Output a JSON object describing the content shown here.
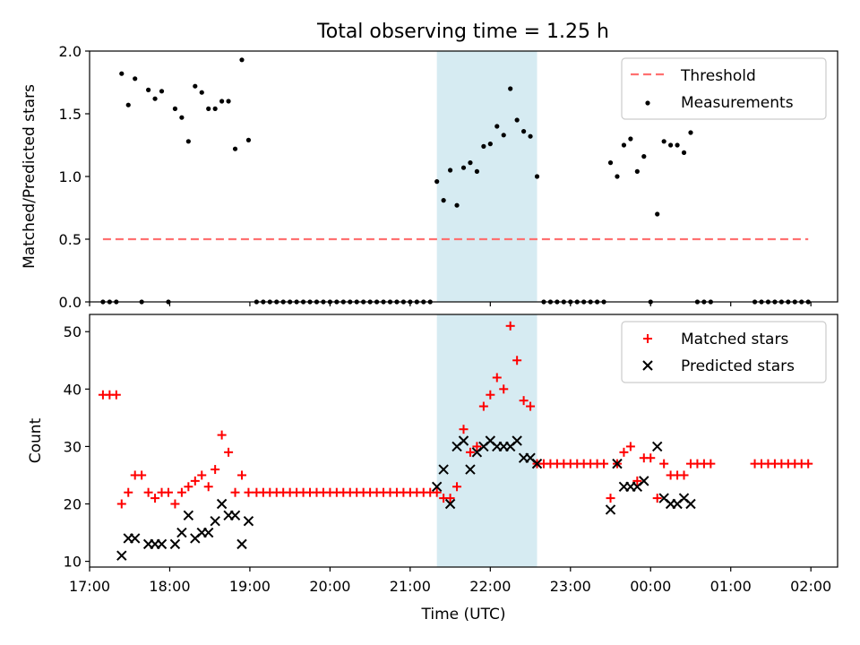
{
  "title": "Total observing time = 1.25 h",
  "chart_data": [
    {
      "type": "scatter",
      "ylabel": "Matched/Predicted stars",
      "xlabel": "",
      "xlim": [
        "17:00",
        "02:20"
      ],
      "ylim": [
        0,
        2.0
      ],
      "yticks": [
        0.0,
        0.5,
        1.0,
        1.5,
        2.0
      ],
      "ytick_labels": [
        "0.0",
        "0.5",
        "1.0",
        "1.5",
        "2.0"
      ],
      "grid": false,
      "legend": "top-right",
      "legend_entries": [
        "Threshold",
        "Measurements"
      ],
      "threshold": {
        "name": "Threshold",
        "value": 0.5,
        "x_start": "17:10",
        "x_end": "01:58",
        "color": "#ff7070"
      },
      "highlight": {
        "x_start": "21:20",
        "x_end": "22:35",
        "color": "#add8e6"
      },
      "series": [
        {
          "name": "Measurements",
          "color": "#000000",
          "points": [
            [
              "17:10",
              0
            ],
            [
              "17:15",
              0
            ],
            [
              "17:20",
              0
            ],
            [
              "17:24",
              1.82
            ],
            [
              "17:29",
              1.57
            ],
            [
              "17:34",
              1.78
            ],
            [
              "17:39",
              0
            ],
            [
              "17:44",
              1.69
            ],
            [
              "17:49",
              1.62
            ],
            [
              "17:54",
              1.68
            ],
            [
              "17:59",
              0
            ],
            [
              "18:04",
              1.54
            ],
            [
              "18:09",
              1.47
            ],
            [
              "18:14",
              1.28
            ],
            [
              "18:19",
              1.72
            ],
            [
              "18:24",
              1.67
            ],
            [
              "18:29",
              1.54
            ],
            [
              "18:34",
              1.54
            ],
            [
              "18:39",
              1.6
            ],
            [
              "18:44",
              1.6
            ],
            [
              "18:49",
              1.22
            ],
            [
              "18:54",
              1.93
            ],
            [
              "18:59",
              1.29
            ],
            [
              "19:05",
              0
            ],
            [
              "19:10",
              0
            ],
            [
              "19:15",
              0
            ],
            [
              "19:20",
              0
            ],
            [
              "19:25",
              0
            ],
            [
              "19:30",
              0
            ],
            [
              "19:35",
              0
            ],
            [
              "19:40",
              0
            ],
            [
              "19:45",
              0
            ],
            [
              "19:50",
              0
            ],
            [
              "19:55",
              0
            ],
            [
              "20:00",
              0
            ],
            [
              "20:05",
              0
            ],
            [
              "20:10",
              0
            ],
            [
              "20:15",
              0
            ],
            [
              "20:20",
              0
            ],
            [
              "20:25",
              0
            ],
            [
              "20:30",
              0
            ],
            [
              "20:35",
              0
            ],
            [
              "20:40",
              0
            ],
            [
              "20:45",
              0
            ],
            [
              "20:50",
              0
            ],
            [
              "20:55",
              0
            ],
            [
              "21:00",
              0
            ],
            [
              "21:05",
              0
            ],
            [
              "21:10",
              0
            ],
            [
              "21:15",
              0
            ],
            [
              "21:20",
              0.96
            ],
            [
              "21:25",
              0.81
            ],
            [
              "21:30",
              1.05
            ],
            [
              "21:35",
              0.77
            ],
            [
              "21:40",
              1.07
            ],
            [
              "21:45",
              1.11
            ],
            [
              "21:50",
              1.04
            ],
            [
              "21:55",
              1.24
            ],
            [
              "22:00",
              1.26
            ],
            [
              "22:05",
              1.4
            ],
            [
              "22:10",
              1.33
            ],
            [
              "22:15",
              1.7
            ],
            [
              "22:20",
              1.45
            ],
            [
              "22:25",
              1.36
            ],
            [
              "22:30",
              1.32
            ],
            [
              "22:35",
              1.0
            ],
            [
              "22:40",
              0
            ],
            [
              "22:45",
              0
            ],
            [
              "22:50",
              0
            ],
            [
              "22:55",
              0
            ],
            [
              "23:00",
              0
            ],
            [
              "23:05",
              0
            ],
            [
              "23:10",
              0
            ],
            [
              "23:15",
              0
            ],
            [
              "23:20",
              0
            ],
            [
              "23:25",
              0
            ],
            [
              "23:30",
              1.11
            ],
            [
              "23:35",
              1.0
            ],
            [
              "23:40",
              1.25
            ],
            [
              "23:45",
              1.3
            ],
            [
              "23:50",
              1.04
            ],
            [
              "23:55",
              1.16
            ],
            [
              "00:00",
              0
            ],
            [
              "00:05",
              0.7
            ],
            [
              "00:10",
              1.28
            ],
            [
              "00:15",
              1.25
            ],
            [
              "00:20",
              1.25
            ],
            [
              "00:25",
              1.19
            ],
            [
              "00:30",
              1.35
            ],
            [
              "00:35",
              0
            ],
            [
              "00:40",
              0
            ],
            [
              "00:45",
              0
            ],
            [
              "01:18",
              0
            ],
            [
              "01:23",
              0
            ],
            [
              "01:28",
              0
            ],
            [
              "01:33",
              0
            ],
            [
              "01:38",
              0
            ],
            [
              "01:43",
              0
            ],
            [
              "01:48",
              0
            ],
            [
              "01:53",
              0
            ],
            [
              "01:58",
              0
            ]
          ]
        }
      ]
    },
    {
      "type": "scatter",
      "ylabel": "Count",
      "xlabel": "Time (UTC)",
      "xlim": [
        "17:00",
        "02:20"
      ],
      "ylim": [
        9,
        53
      ],
      "yticks": [
        10,
        20,
        30,
        40,
        50
      ],
      "xticks": [
        "17:00",
        "18:00",
        "19:00",
        "20:00",
        "21:00",
        "22:00",
        "23:00",
        "00:00",
        "01:00",
        "02:00"
      ],
      "grid": false,
      "legend": "top-right",
      "legend_entries": [
        "Matched stars",
        "Predicted stars"
      ],
      "highlight": {
        "x_start": "21:20",
        "x_end": "22:35",
        "color": "#add8e6"
      },
      "series": [
        {
          "name": "Matched stars",
          "marker": "+",
          "color": "#ff0000",
          "points": [
            [
              "17:10",
              39
            ],
            [
              "17:15",
              39
            ],
            [
              "17:20",
              39
            ],
            [
              "17:24",
              20
            ],
            [
              "17:29",
              22
            ],
            [
              "17:34",
              25
            ],
            [
              "17:39",
              25
            ],
            [
              "17:44",
              22
            ],
            [
              "17:49",
              21
            ],
            [
              "17:54",
              22
            ],
            [
              "17:59",
              22
            ],
            [
              "18:04",
              20
            ],
            [
              "18:09",
              22
            ],
            [
              "18:14",
              23
            ],
            [
              "18:19",
              24
            ],
            [
              "18:24",
              25
            ],
            [
              "18:29",
              23
            ],
            [
              "18:34",
              26
            ],
            [
              "18:39",
              32
            ],
            [
              "18:44",
              29
            ],
            [
              "18:49",
              22
            ],
            [
              "18:54",
              25
            ],
            [
              "18:59",
              22
            ],
            [
              "19:05",
              22
            ],
            [
              "19:10",
              22
            ],
            [
              "19:15",
              22
            ],
            [
              "19:20",
              22
            ],
            [
              "19:25",
              22
            ],
            [
              "19:30",
              22
            ],
            [
              "19:35",
              22
            ],
            [
              "19:40",
              22
            ],
            [
              "19:45",
              22
            ],
            [
              "19:50",
              22
            ],
            [
              "19:55",
              22
            ],
            [
              "20:00",
              22
            ],
            [
              "20:05",
              22
            ],
            [
              "20:10",
              22
            ],
            [
              "20:15",
              22
            ],
            [
              "20:20",
              22
            ],
            [
              "20:25",
              22
            ],
            [
              "20:30",
              22
            ],
            [
              "20:35",
              22
            ],
            [
              "20:40",
              22
            ],
            [
              "20:45",
              22
            ],
            [
              "20:50",
              22
            ],
            [
              "20:55",
              22
            ],
            [
              "21:00",
              22
            ],
            [
              "21:05",
              22
            ],
            [
              "21:10",
              22
            ],
            [
              "21:15",
              22
            ],
            [
              "21:20",
              22
            ],
            [
              "21:25",
              21
            ],
            [
              "21:30",
              21
            ],
            [
              "21:35",
              23
            ],
            [
              "21:40",
              33
            ],
            [
              "21:45",
              29
            ],
            [
              "21:50",
              30
            ],
            [
              "21:55",
              37
            ],
            [
              "22:00",
              39
            ],
            [
              "22:05",
              42
            ],
            [
              "22:10",
              40
            ],
            [
              "22:15",
              51
            ],
            [
              "22:20",
              45
            ],
            [
              "22:25",
              38
            ],
            [
              "22:30",
              37
            ],
            [
              "22:35",
              27
            ],
            [
              "22:40",
              27
            ],
            [
              "22:45",
              27
            ],
            [
              "22:50",
              27
            ],
            [
              "22:55",
              27
            ],
            [
              "23:00",
              27
            ],
            [
              "23:05",
              27
            ],
            [
              "23:10",
              27
            ],
            [
              "23:15",
              27
            ],
            [
              "23:20",
              27
            ],
            [
              "23:25",
              27
            ],
            [
              "23:30",
              21
            ],
            [
              "23:35",
              27
            ],
            [
              "23:40",
              29
            ],
            [
              "23:45",
              30
            ],
            [
              "23:50",
              24
            ],
            [
              "23:55",
              28
            ],
            [
              "00:00",
              28
            ],
            [
              "00:05",
              21
            ],
            [
              "00:10",
              27
            ],
            [
              "00:15",
              25
            ],
            [
              "00:20",
              25
            ],
            [
              "00:25",
              25
            ],
            [
              "00:30",
              27
            ],
            [
              "00:35",
              27
            ],
            [
              "00:40",
              27
            ],
            [
              "00:45",
              27
            ],
            [
              "01:18",
              27
            ],
            [
              "01:23",
              27
            ],
            [
              "01:28",
              27
            ],
            [
              "01:33",
              27
            ],
            [
              "01:38",
              27
            ],
            [
              "01:43",
              27
            ],
            [
              "01:48",
              27
            ],
            [
              "01:53",
              27
            ],
            [
              "01:58",
              27
            ]
          ]
        },
        {
          "name": "Predicted stars",
          "marker": "x",
          "color": "#000000",
          "points": [
            [
              "17:24",
              11
            ],
            [
              "17:29",
              14
            ],
            [
              "17:34",
              14
            ],
            [
              "17:44",
              13
            ],
            [
              "17:49",
              13
            ],
            [
              "17:54",
              13
            ],
            [
              "18:04",
              13
            ],
            [
              "18:09",
              15
            ],
            [
              "18:14",
              18
            ],
            [
              "18:19",
              14
            ],
            [
              "18:24",
              15
            ],
            [
              "18:29",
              15
            ],
            [
              "18:34",
              17
            ],
            [
              "18:39",
              20
            ],
            [
              "18:44",
              18
            ],
            [
              "18:49",
              18
            ],
            [
              "18:54",
              13
            ],
            [
              "18:59",
              17
            ],
            [
              "21:20",
              23
            ],
            [
              "21:25",
              26
            ],
            [
              "21:30",
              20
            ],
            [
              "21:35",
              30
            ],
            [
              "21:40",
              31
            ],
            [
              "21:45",
              26
            ],
            [
              "21:50",
              29
            ],
            [
              "21:55",
              30
            ],
            [
              "22:00",
              31
            ],
            [
              "22:05",
              30
            ],
            [
              "22:10",
              30
            ],
            [
              "22:15",
              30
            ],
            [
              "22:20",
              31
            ],
            [
              "22:25",
              28
            ],
            [
              "22:30",
              28
            ],
            [
              "22:35",
              27
            ],
            [
              "23:30",
              19
            ],
            [
              "23:35",
              27
            ],
            [
              "23:40",
              23
            ],
            [
              "23:45",
              23
            ],
            [
              "23:50",
              23
            ],
            [
              "23:55",
              24
            ],
            [
              "00:05",
              30
            ],
            [
              "00:10",
              21
            ],
            [
              "00:15",
              20
            ],
            [
              "00:20",
              20
            ],
            [
              "00:25",
              21
            ],
            [
              "00:30",
              20
            ]
          ]
        }
      ]
    }
  ]
}
